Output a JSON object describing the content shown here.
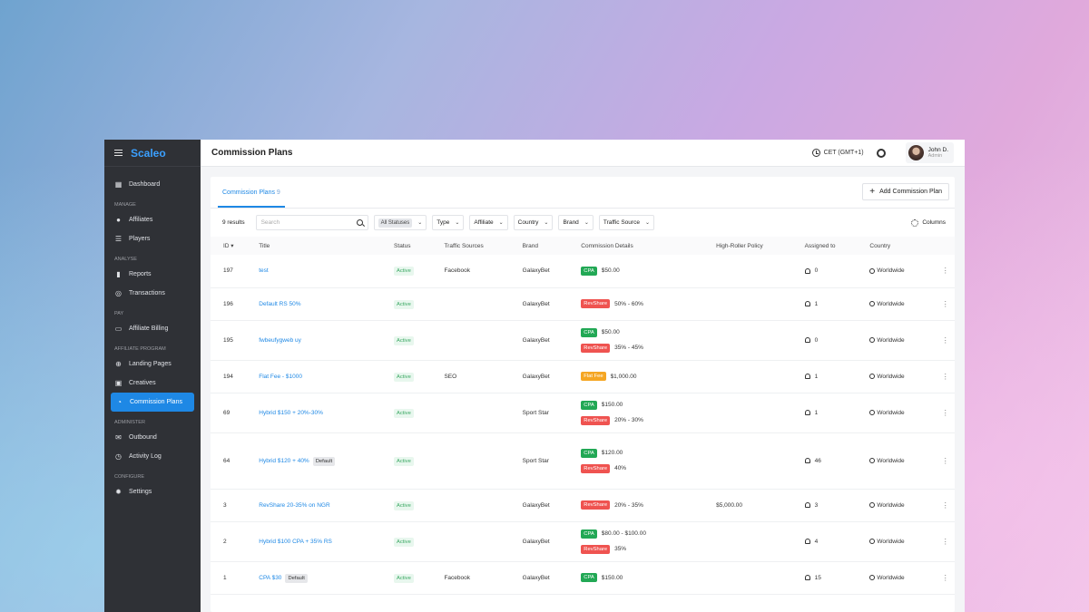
{
  "sidebar": {
    "brand": "Scaleo",
    "sections": [
      {
        "label": "",
        "items": [
          {
            "label": "Dashboard",
            "icon": "dashboard-icon",
            "glyph": "▦"
          }
        ]
      },
      {
        "label": "MANAGE",
        "items": [
          {
            "label": "Affiliates",
            "icon": "affiliates-icon",
            "glyph": "●"
          },
          {
            "label": "Players",
            "icon": "players-icon",
            "glyph": "☰"
          }
        ]
      },
      {
        "label": "ANALYSE",
        "items": [
          {
            "label": "Reports",
            "icon": "reports-icon",
            "glyph": "▮"
          },
          {
            "label": "Transactions",
            "icon": "transactions-icon",
            "glyph": "◎"
          }
        ]
      },
      {
        "label": "PAY",
        "items": [
          {
            "label": "Affiliate Billing",
            "icon": "billing-icon",
            "glyph": "▭"
          }
        ]
      },
      {
        "label": "AFFILIATE PROGRAM",
        "items": [
          {
            "label": "Landing Pages",
            "icon": "landing-pages-icon",
            "glyph": "⊕"
          },
          {
            "label": "Creatives",
            "icon": "creatives-icon",
            "glyph": "▣"
          },
          {
            "label": "Commission Plans",
            "icon": "commission-plans-icon",
            "glyph": "◔",
            "active": true
          }
        ]
      },
      {
        "label": "ADMINISTER",
        "items": [
          {
            "label": "Outbound",
            "icon": "outbound-icon",
            "glyph": "✉"
          },
          {
            "label": "Activity Log",
            "icon": "activity-log-icon",
            "glyph": "◷"
          }
        ]
      },
      {
        "label": "CONFIGURE",
        "items": [
          {
            "label": "Settings",
            "icon": "settings-icon",
            "glyph": "✹"
          }
        ]
      }
    ]
  },
  "header": {
    "title": "Commission Plans",
    "timezone": "CET (GMT+1)",
    "user_name": "John D.",
    "user_role": "Admin"
  },
  "tabs": {
    "label": "Commission Plans",
    "count": "9"
  },
  "add_button": "Add Commission Plan",
  "filters": {
    "results": "9 results",
    "search_placeholder": "Search",
    "status_chip": "All Statuses",
    "type": "Type",
    "affiliate": "Affiliate",
    "country": "Country",
    "brand": "Brand",
    "traffic_source": "Traffic Source",
    "columns": "Columns"
  },
  "table": {
    "headers": [
      "ID",
      "Title",
      "Status",
      "Traffic Sources",
      "Brand",
      "Commission Details",
      "High-Roller Policy",
      "Assigned to",
      "Country"
    ],
    "rows": [
      {
        "id": "197",
        "title": "test",
        "default": "",
        "status": "Active",
        "traffic": "Facebook",
        "brand": "GalaxyBet",
        "details": [
          {
            "type": "CPA",
            "kind": "cpa",
            "value": "$50.00"
          }
        ],
        "high_roller": "",
        "assigned": "0",
        "country": "Worldwide"
      },
      {
        "id": "196",
        "title": "Default RS 50%",
        "default": "",
        "status": "Active",
        "traffic": "",
        "brand": "GalaxyBet",
        "details": [
          {
            "type": "RevShare",
            "kind": "rev",
            "value": "50% - 60%"
          }
        ],
        "high_roller": "",
        "assigned": "1",
        "country": "Worldwide"
      },
      {
        "id": "195",
        "title": "fwbeufygweb uy",
        "default": "",
        "status": "Active",
        "traffic": "",
        "brand": "GalaxyBet",
        "details": [
          {
            "type": "CPA",
            "kind": "cpa",
            "value": "$50.00"
          },
          {
            "type": "RevShare",
            "kind": "rev",
            "value": "35% - 45%"
          }
        ],
        "high_roller": "",
        "assigned": "0",
        "country": "Worldwide"
      },
      {
        "id": "194",
        "title": "Flat Fee - $1000",
        "default": "",
        "status": "Active",
        "traffic": "SEO",
        "brand": "GalaxyBet",
        "details": [
          {
            "type": "Flat Fee",
            "kind": "flat",
            "value": "$1,000.00"
          }
        ],
        "high_roller": "",
        "assigned": "1",
        "country": "Worldwide"
      },
      {
        "id": "69",
        "title": "Hybrid $150 + 20%-30%",
        "default": "",
        "status": "Active",
        "traffic": "",
        "brand": "Sport Star",
        "details": [
          {
            "type": "CPA",
            "kind": "cpa",
            "value": "$150.00"
          },
          {
            "type": "RevShare",
            "kind": "rev",
            "value": "20% - 30%"
          }
        ],
        "high_roller": "",
        "assigned": "1",
        "country": "Worldwide"
      },
      {
        "id": "64",
        "title": "Hybrid $120 + 40%",
        "default": "Default",
        "status": "Active",
        "traffic": "",
        "brand": "Sport Star",
        "details": [
          {
            "type": "CPA",
            "kind": "cpa",
            "value": "$120.00"
          },
          {
            "type": "RevShare",
            "kind": "rev",
            "value": "40%"
          }
        ],
        "high_roller": "",
        "assigned": "46",
        "country": "Worldwide"
      },
      {
        "id": "3",
        "title": "RevShare 20-35% on NGR",
        "default": "",
        "status": "Active",
        "traffic": "",
        "brand": "GalaxyBet",
        "details": [
          {
            "type": "RevShare",
            "kind": "rev",
            "value": "20% - 35%"
          }
        ],
        "high_roller": "$5,000.00",
        "assigned": "3",
        "country": "Worldwide"
      },
      {
        "id": "2",
        "title": "Hybrid $100 CPA + 35% RS",
        "default": "",
        "status": "Active",
        "traffic": "",
        "brand": "GalaxyBet",
        "details": [
          {
            "type": "CPA",
            "kind": "cpa",
            "value": "$80.00 - $100.00"
          },
          {
            "type": "RevShare",
            "kind": "rev",
            "value": "35%"
          }
        ],
        "high_roller": "",
        "assigned": "4",
        "country": "Worldwide"
      },
      {
        "id": "1",
        "title": "CPA $30",
        "default": "Default",
        "status": "Active",
        "traffic": "Facebook",
        "brand": "GalaxyBet",
        "details": [
          {
            "type": "CPA",
            "kind": "cpa",
            "value": "$150.00"
          }
        ],
        "high_roller": "",
        "assigned": "15",
        "country": "Worldwide"
      }
    ]
  }
}
